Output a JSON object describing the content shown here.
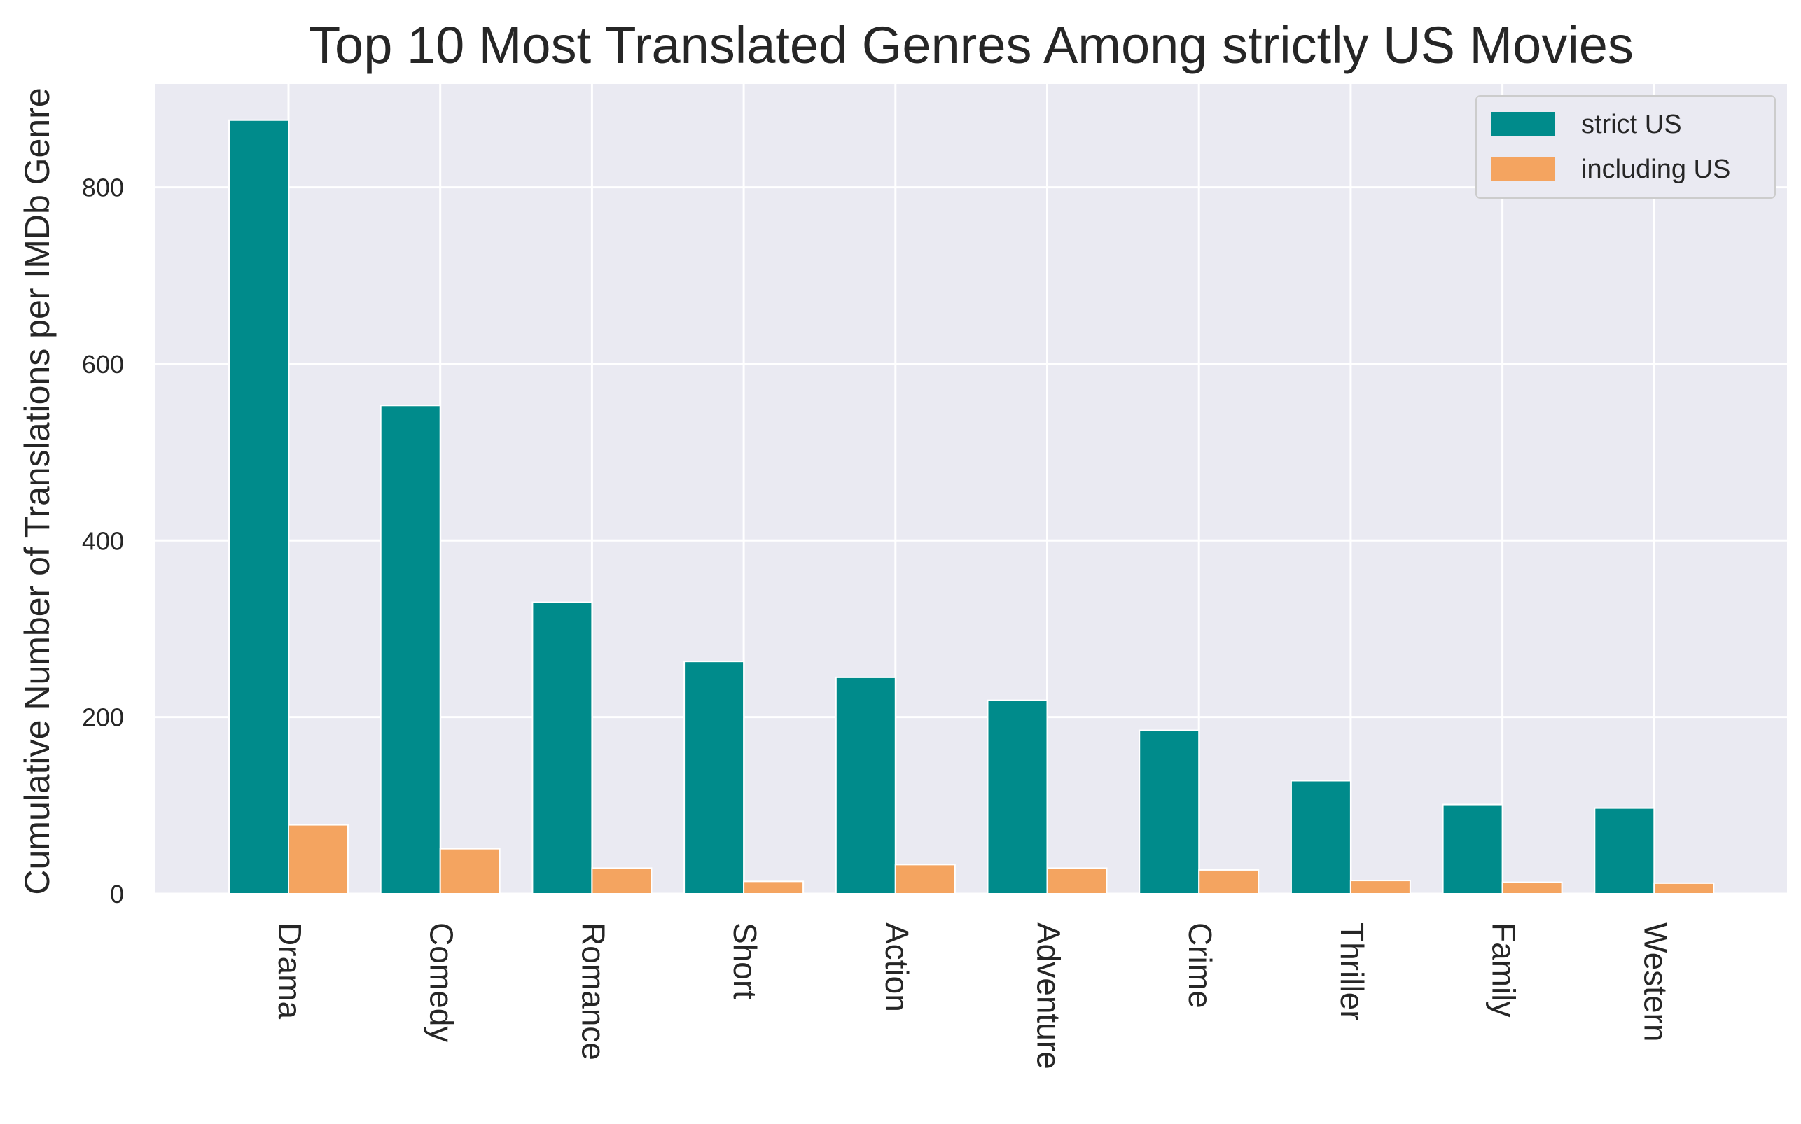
{
  "chart_data": {
    "type": "bar",
    "title": "Top 10 Most Translated Genres Among strictly US Movies",
    "xlabel": "",
    "ylabel": "Cumulative Number of Translations per IMDb Genre",
    "categories": [
      "Drama",
      "Comedy",
      "Romance",
      "Short",
      "Action",
      "Adventure",
      "Crime",
      "Thriller",
      "Family",
      "Western"
    ],
    "series": [
      {
        "name": "strict US",
        "color": "#008b8b",
        "values": [
          876,
          553,
          330,
          263,
          245,
          219,
          185,
          128,
          101,
          97
        ]
      },
      {
        "name": "including US",
        "color": "#f4a460",
        "values": [
          78,
          51,
          29,
          14,
          33,
          29,
          27,
          15,
          13,
          12
        ]
      }
    ],
    "yticks": [
      0,
      200,
      400,
      600,
      800
    ],
    "ylim": [
      0,
      917
    ],
    "grid": true,
    "legend_position": "top-right",
    "plot_background": "#eaeaf2"
  }
}
